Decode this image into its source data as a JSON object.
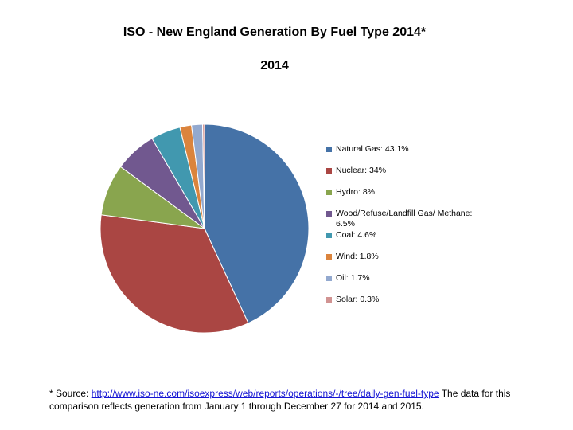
{
  "chart_data": {
    "type": "pie",
    "title": "ISO - New England Generation By Fuel Type 2014*",
    "subtitle": "2014",
    "categories": [
      "Natural Gas",
      "Nuclear",
      "Hydro",
      "Wood/Refuse/Landfill Gas/ Methane",
      "Coal",
      "Wind",
      "Oil",
      "Solar"
    ],
    "values": [
      43.1,
      34,
      8,
      6.5,
      4.6,
      1.8,
      1.7,
      0.3
    ],
    "colors": [
      "#4572A7",
      "#AA4643",
      "#89A54E",
      "#71588F",
      "#4198AF",
      "#DB843D",
      "#93A9CF",
      "#D19392"
    ],
    "legend": [
      "Natural Gas: 43.1%",
      "Nuclear: 34%",
      "Hydro: 8%",
      "Wood/Refuse/Landfill Gas/ Methane: 6.5%",
      "Coal: 4.6%",
      "Wind: 1.8%",
      "Oil: 1.7%",
      "Solar: 0.3%"
    ],
    "legend_position": "right"
  },
  "footnote": {
    "prefix": "* Source:  ",
    "link": "http://www.iso-ne.com/isoexpress/web/reports/operations/-/tree/daily-gen-fuel-type",
    "suffix": "  The data for this comparison reflects generation from January 1 through December 27 for 2014 and 2015."
  }
}
